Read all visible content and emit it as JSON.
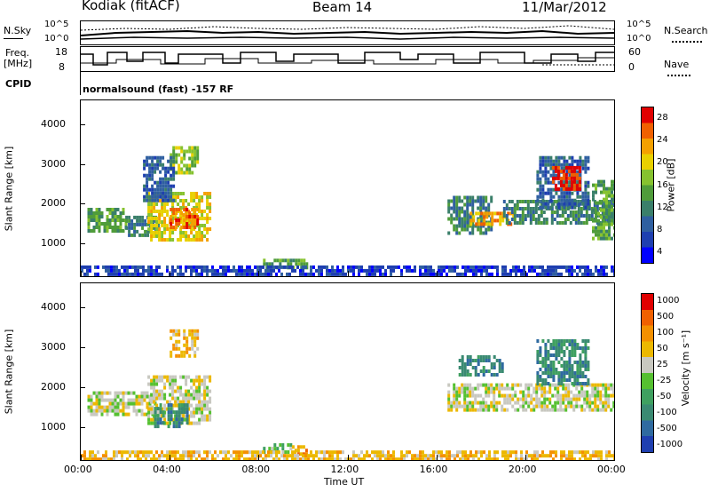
{
  "header": {
    "station": "Kodiak (fitACF)",
    "beam": "Beam 14",
    "date": "11/Mar/2012"
  },
  "top_panels": {
    "nsky_label": "N.Sky",
    "nsky_ticks": [
      "10^5",
      "10^0"
    ],
    "nsearch_label": "N.Search",
    "nsearch_ticks": [
      "10^5",
      "10^0"
    ],
    "freq_label_1": "Freq.",
    "freq_label_2": "[MHz]",
    "freq_ticks": [
      "18",
      "8"
    ],
    "nave_label": "Nave",
    "nave_ticks": [
      "60",
      "0"
    ],
    "cpid_label": "CPID",
    "cpid_value": "normalsound (fast) -157 RF"
  },
  "chart_data": [
    {
      "type": "heatmap",
      "name": "power-panel",
      "ylabel": "Slant Range [km]",
      "yticks": [
        "1000",
        "2000",
        "3000",
        "4000"
      ],
      "ylim": [
        180,
        4600
      ],
      "xlim_hours": [
        0,
        24
      ],
      "colorbar": {
        "label": "Power [dB]",
        "ticks": [
          "28",
          "24",
          "20",
          "16",
          "12",
          "8",
          "4"
        ],
        "colors": [
          "#0000ff",
          "#1e3fb0",
          "#2f5fa0",
          "#3a7f6a",
          "#4f9c3a",
          "#86c22f",
          "#e8d000",
          "#f4a000",
          "#f06000",
          "#e00000"
        ]
      },
      "regions": [
        {
          "t0": 0.3,
          "t1": 2.0,
          "r0": 1350,
          "r1": 1900,
          "level": 4
        },
        {
          "t0": 2.0,
          "t1": 3.5,
          "r0": 1200,
          "r1": 1700,
          "level": 3
        },
        {
          "t0": 3.0,
          "t1": 5.8,
          "r0": 1100,
          "r1": 2300,
          "level": 6
        },
        {
          "t0": 4.0,
          "t1": 5.2,
          "r0": 1400,
          "r1": 1900,
          "level": 8
        },
        {
          "t0": 4.0,
          "t1": 5.2,
          "r0": 2800,
          "r1": 3450,
          "level": 5
        },
        {
          "t0": 2.8,
          "t1": 4.2,
          "r0": 2100,
          "r1": 3200,
          "level": 2
        },
        {
          "t0": 8.2,
          "t1": 10.2,
          "r0": 380,
          "r1": 620,
          "level": 4
        },
        {
          "t0": 16.5,
          "t1": 18.5,
          "r0": 1300,
          "r1": 2200,
          "level": 3
        },
        {
          "t0": 17.5,
          "t1": 19.5,
          "r0": 1500,
          "r1": 1800,
          "level": 7
        },
        {
          "t0": 19.0,
          "t1": 24.0,
          "r0": 1500,
          "r1": 2100,
          "level": 3
        },
        {
          "t0": 20.5,
          "t1": 22.8,
          "r0": 1900,
          "r1": 3200,
          "level": 2
        },
        {
          "t0": 21.2,
          "t1": 22.4,
          "r0": 2400,
          "r1": 2950,
          "level": 9
        },
        {
          "t0": 23.0,
          "t1": 24.0,
          "r0": 1100,
          "r1": 2600,
          "level": 4
        },
        {
          "t0": 0.0,
          "t1": 24.0,
          "r0": 200,
          "r1": 450,
          "level": 1
        }
      ]
    },
    {
      "type": "heatmap",
      "name": "velocity-panel",
      "ylabel": "Slant Range [km]",
      "yticks": [
        "1000",
        "2000",
        "3000",
        "4000"
      ],
      "ylim": [
        180,
        4600
      ],
      "xlim_hours": [
        0,
        24
      ],
      "xticks": [
        "00:00",
        "04:00",
        "08:00",
        "12:00",
        "16:00",
        "20:00",
        "00:00"
      ],
      "xlabel": "Time UT",
      "colorbar": {
        "label": "Velocity [m s⁻¹]",
        "ticks": [
          "1000",
          "500",
          "100",
          "50",
          "25",
          "-25",
          "-50",
          "-100",
          "-500",
          "-1000"
        ],
        "colors": [
          "#1f3fb0",
          "#2f6aa0",
          "#3a8a72",
          "#3fa060",
          "#55c030",
          "#c8c8c0",
          "#ecb800",
          "#f49000",
          "#f06000",
          "#e00000"
        ]
      },
      "regions": [
        {
          "t0": 0.3,
          "t1": 3.5,
          "r0": 1350,
          "r1": 1900,
          "level": 5
        },
        {
          "t0": 3.0,
          "t1": 5.8,
          "r0": 1100,
          "r1": 2300,
          "level": 5
        },
        {
          "t0": 3.3,
          "t1": 4.8,
          "r0": 1000,
          "r1": 1600,
          "level": 2
        },
        {
          "t0": 4.0,
          "t1": 5.2,
          "r0": 2800,
          "r1": 3450,
          "level": 6
        },
        {
          "t0": 8.2,
          "t1": 9.5,
          "r0": 400,
          "r1": 600,
          "level": 4
        },
        {
          "t0": 9.5,
          "t1": 10.2,
          "r0": 350,
          "r1": 550,
          "level": 7
        },
        {
          "t0": 16.5,
          "t1": 24.0,
          "r0": 1400,
          "r1": 2100,
          "level": 5
        },
        {
          "t0": 20.5,
          "t1": 22.8,
          "r0": 2100,
          "r1": 3200,
          "level": 2
        },
        {
          "t0": 17.0,
          "t1": 19.0,
          "r0": 2300,
          "r1": 2800,
          "level": 2
        },
        {
          "t0": 0.0,
          "t1": 24.0,
          "r0": 200,
          "r1": 420,
          "level": 6
        }
      ]
    }
  ]
}
